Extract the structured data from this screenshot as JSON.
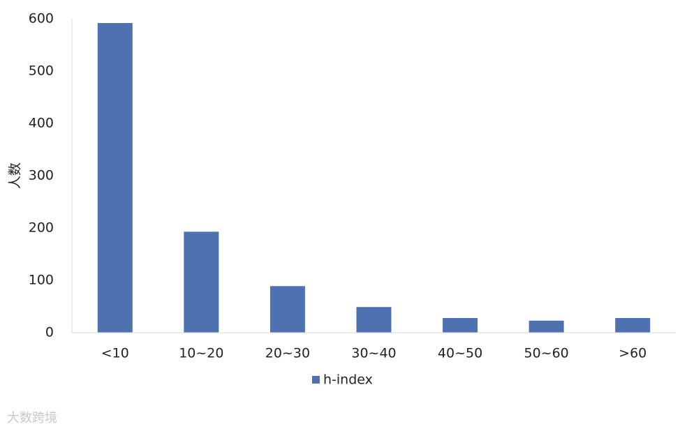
{
  "chart_data": {
    "type": "bar",
    "y_label": "人数",
    "categories": [
      "<10",
      "10~20",
      "20~30",
      "30~40",
      "40~50",
      "50~60",
      ">60"
    ],
    "series": [
      {
        "name": "h-index",
        "color": "#4e72b0",
        "values": [
          592,
          193,
          89,
          49,
          28,
          23,
          28
        ]
      }
    ],
    "ylim": [
      0,
      600
    ],
    "yticks": [
      0,
      100,
      200,
      300,
      400,
      500,
      600
    ],
    "grid": false,
    "legend": "bottom",
    "watermark": "大数跨境"
  }
}
